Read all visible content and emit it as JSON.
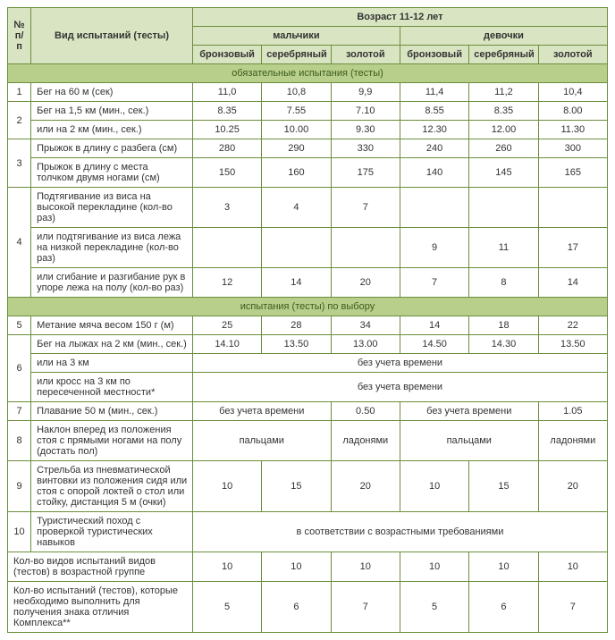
{
  "header": {
    "num": "№ п/п",
    "test_type": "Вид испытаний (тесты)",
    "age_group": "Возраст 11-12 лет",
    "boys": "мальчики",
    "girls": "девочки",
    "bronze": "бронзовый",
    "silver": "серебряный",
    "gold": "золотой"
  },
  "section1": "обязательные испытания (тесты)",
  "section2": "испытания (тесты) по выбору",
  "rows": [
    {
      "n": "1",
      "name": "Бег на 60 м (сек)",
      "b1": "11,0",
      "s1": "10,8",
      "g1": "9,9",
      "b2": "11,4",
      "s2": "11,2",
      "g2": "10,4"
    },
    {
      "name": "Бег на 1,5 км (мин., сек.)",
      "b1": "8.35",
      "s1": "7.55",
      "g1": "7.10",
      "b2": "8.55",
      "s2": "8.35",
      "g2": "8.00"
    },
    {
      "n": "2",
      "name": "или на 2 км (мин., сек.)",
      "b1": "10.25",
      "s1": "10.00",
      "g1": "9.30",
      "b2": "12.30",
      "s2": "12.00",
      "g2": "11.30"
    },
    {
      "name": "Прыжок в длину с разбега (см)",
      "b1": "280",
      "s1": "290",
      "g1": "330",
      "b2": "240",
      "s2": "260",
      "g2": "300"
    },
    {
      "n": "3",
      "name": "Прыжок в длину с места толчком двумя ногами (см)",
      "b1": "150",
      "s1": "160",
      "g1": "175",
      "b2": "140",
      "s2": "145",
      "g2": "165"
    },
    {
      "name": "Подтягивание из виса на высокой перекладине (кол-во раз)",
      "b1": "3",
      "s1": "4",
      "g1": "7",
      "b2": "",
      "s2": "",
      "g2": ""
    },
    {
      "n": "4",
      "name": "или подтягивание из виса лежа на низкой перекладине (кол-во раз)",
      "b1": "",
      "s1": "",
      "g1": "",
      "b2": "9",
      "s2": "11",
      "g2": "17"
    },
    {
      "name": "или сгибание и разгибание рук в упоре лежа на полу (кол-во раз)",
      "b1": "12",
      "s1": "14",
      "g1": "20",
      "b2": "7",
      "s2": "8",
      "g2": "14"
    },
    {
      "n": "5",
      "name": "Метание мяча весом 150 г (м)",
      "b1": "25",
      "s1": "28",
      "g1": "34",
      "b2": "14",
      "s2": "18",
      "g2": "22"
    },
    {
      "name": "Бег на лыжах на 2 км (мин., сек.)",
      "b1": "14.10",
      "s1": "13.50",
      "g1": "13.00",
      "b2": "14.50",
      "s2": "14.30",
      "g2": "13.50"
    },
    {
      "n": "6",
      "name": "или на 3 км",
      "span": "без учета времени"
    },
    {
      "name": "или кросс на 3 км по пересеченной местности*",
      "span": "без учета времени"
    },
    {
      "n": "7",
      "name": "Плавание 50 м (мин., сек.)",
      "b1s1": "без учета времени",
      "g1": "0.50",
      "b2s2": "без учета времени",
      "g2": "1.05"
    },
    {
      "n": "8",
      "name": "Наклон вперед из положения стоя с прямыми ногами на полу (достать пол)",
      "b1s1": "пальцами",
      "g1": "ладонями",
      "b2s2": "пальцами",
      "g2": "ладонями"
    },
    {
      "n": "9",
      "name": "Стрельба из пневматической винтовки из положения сидя или стоя с опорой локтей о стол или стойку, дистанция 5 м (очки)",
      "b1": "10",
      "s1": "15",
      "g1": "20",
      "b2": "10",
      "s2": "15",
      "g2": "20"
    },
    {
      "n": "10",
      "name": "Туристический поход с проверкой туристических навыков",
      "span": "в соответствии с возрастными требованиями"
    }
  ],
  "footer": [
    {
      "name": "Кол-во видов испытаний видов (тестов) в возрастной группе",
      "b1": "10",
      "s1": "10",
      "g1": "10",
      "b2": "10",
      "s2": "10",
      "g2": "10"
    },
    {
      "name": "Кол-во испытаний (тестов), которые необходимо выполнить для получения знака отличия Комплекса**",
      "b1": "5",
      "s1": "6",
      "g1": "7",
      "b2": "5",
      "s2": "6",
      "g2": "7"
    }
  ]
}
